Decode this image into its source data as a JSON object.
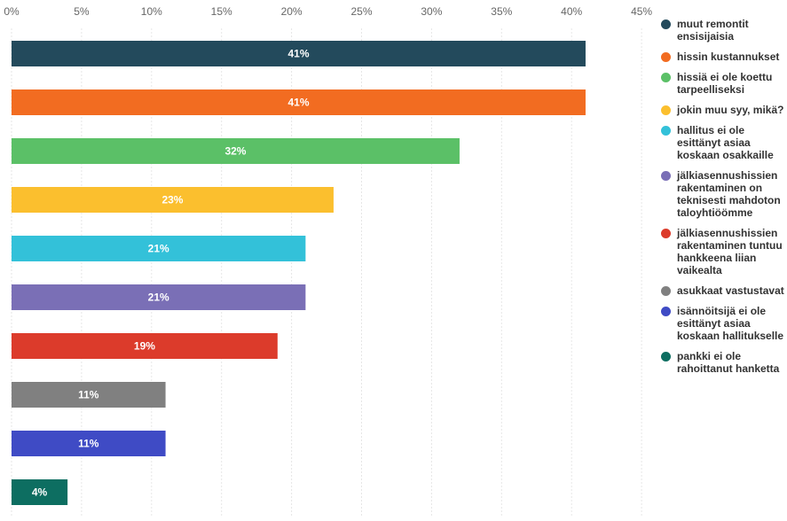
{
  "chart_data": {
    "type": "bar",
    "orientation": "horizontal",
    "xlim": [
      0,
      45
    ],
    "ticks": [
      "0%",
      "5%",
      "10%",
      "15%",
      "20%",
      "25%",
      "30%",
      "35%",
      "40%",
      "45%"
    ],
    "tick_values": [
      0,
      5,
      10,
      15,
      20,
      25,
      30,
      35,
      40,
      45
    ],
    "grid": true,
    "legend_position": "right",
    "series": [
      {
        "name": "muut remontit ensisijaisia",
        "value": 41,
        "label": "41%",
        "color": "#234a5c"
      },
      {
        "name": "hissin kustannukset",
        "value": 41,
        "label": "41%",
        "color": "#f26c21"
      },
      {
        "name": "hissiä ei ole koettu tarpeelliseksi",
        "value": 32,
        "label": "32%",
        "color": "#5bc067"
      },
      {
        "name": "jokin muu syy, mikä?",
        "value": 23,
        "label": "23%",
        "color": "#fbbf2e"
      },
      {
        "name": "hallitus ei ole esittänyt asiaa koskaan osakkaille",
        "value": 21,
        "label": "21%",
        "color": "#33c1d9"
      },
      {
        "name": "jälkiasennushissien rakentaminen on teknisesti mahdoton taloyhtiöömme",
        "value": 21,
        "label": "21%",
        "color": "#7a6fb6"
      },
      {
        "name": "jälkiasennushissien rakentaminen tuntuu hankkeena liian vaikealta",
        "value": 19,
        "label": "19%",
        "color": "#dc3b2b"
      },
      {
        "name": "asukkaat vastustavat",
        "value": 11,
        "label": "11%",
        "color": "#808080"
      },
      {
        "name": "isännöitsijä ei ole esittänyt asiaa koskaan hallitukselle",
        "value": 11,
        "label": "11%",
        "color": "#3f4bc5"
      },
      {
        "name": "pankki ei ole rahoittanut hanketta",
        "value": 4,
        "label": "4%",
        "color": "#0d6e61"
      }
    ]
  }
}
